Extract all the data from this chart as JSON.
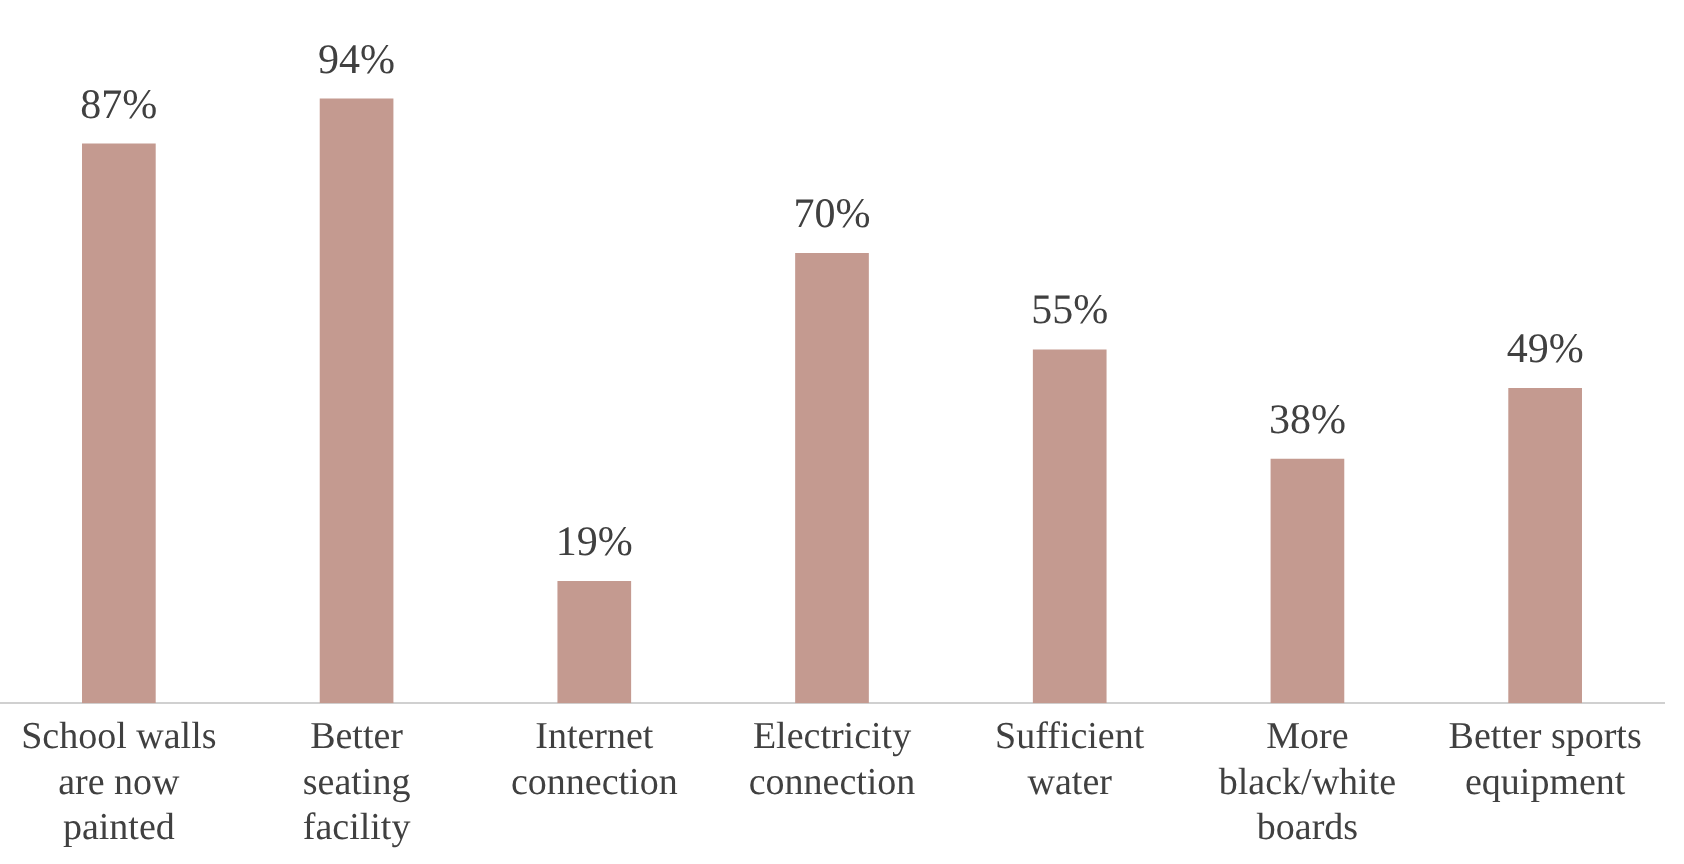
{
  "chart_data": {
    "type": "bar",
    "categories": [
      "School walls are now painted",
      "Better seating facility",
      "Internet connection",
      "Electricity connection",
      "Sufficient water",
      "More black/white boards",
      "Better sports equipment"
    ],
    "values": [
      87,
      94,
      19,
      70,
      55,
      38,
      49
    ],
    "value_labels": [
      "87%",
      "94%",
      "19%",
      "70%",
      "55%",
      "38%",
      "49%"
    ],
    "color": "#c49a90",
    "grid": false,
    "legend": false,
    "tick_labels": "x"
  }
}
